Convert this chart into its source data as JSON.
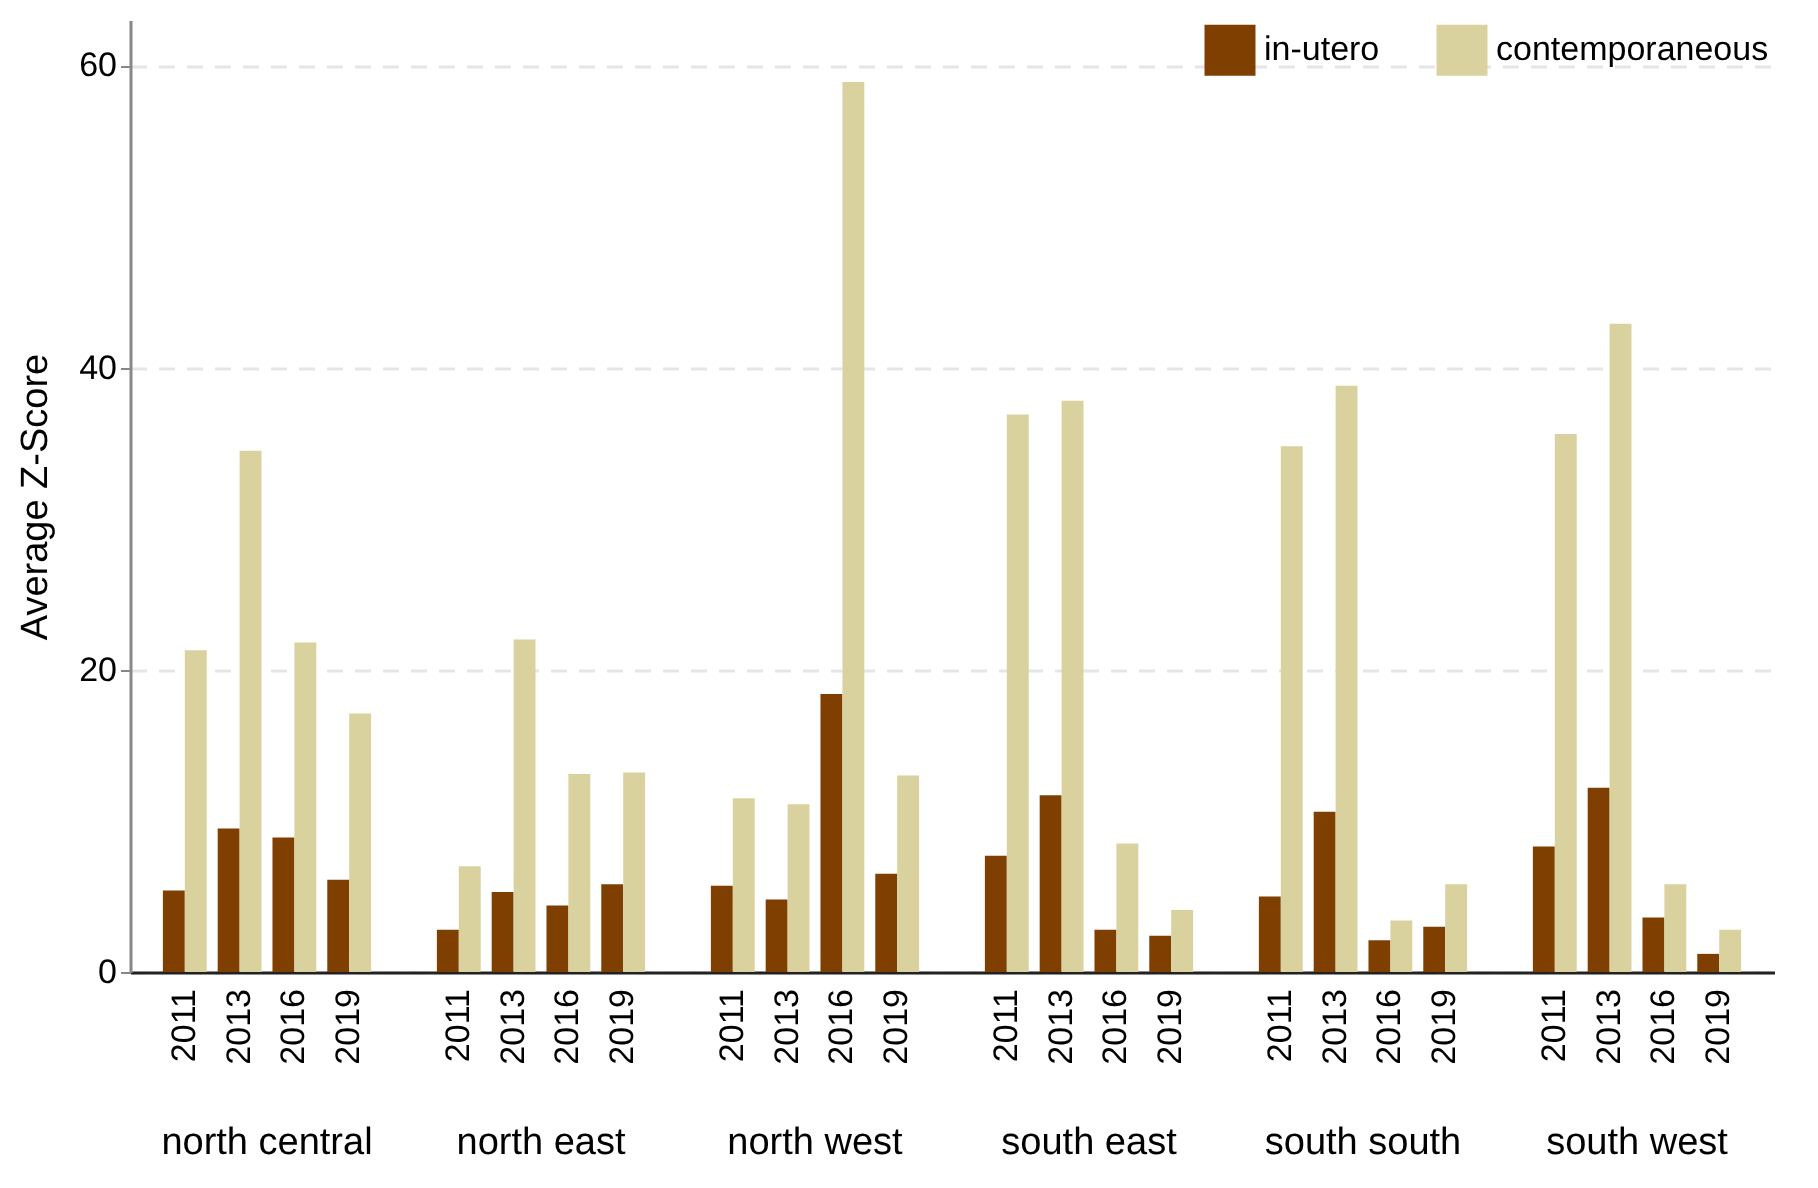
{
  "chart_data": {
    "type": "bar",
    "ylabel": "Average Z-Score",
    "categories": [
      "2011",
      "2013",
      "2016",
      "2019",
      "2011",
      "2013",
      "2016",
      "2019",
      "2011",
      "2013",
      "2016",
      "2019",
      "2011",
      "2013",
      "2016",
      "2019",
      "2011",
      "2013",
      "2016",
      "2019",
      "2011",
      "2013",
      "2016",
      "2019"
    ],
    "ylim": [
      0,
      63
    ],
    "yticks": [
      0,
      20,
      40,
      60
    ],
    "grid": "y",
    "legend": "top right",
    "annotations": [
      "north central",
      "north east",
      "north west",
      "south east",
      "south south",
      "south west"
    ],
    "series": [
      {
        "name": "in-utero",
        "color": "#7f3f00",
        "values": [
          5.4,
          9.5,
          8.9,
          6.1,
          2.8,
          5.3,
          4.4,
          5.8,
          5.7,
          4.8,
          18.4,
          6.5,
          7.7,
          11.7,
          2.8,
          2.4,
          5.0,
          10.6,
          2.1,
          3.0,
          8.3,
          12.2,
          3.6,
          1.2
        ]
      },
      {
        "name": "contemporaneous",
        "color": "#d9d29f",
        "values": [
          21.3,
          34.5,
          21.8,
          17.1,
          7.0,
          22.0,
          13.1,
          13.2,
          11.5,
          11.1,
          58.9,
          13.0,
          36.9,
          37.8,
          8.5,
          4.1,
          34.8,
          38.8,
          3.4,
          5.8,
          35.6,
          42.9,
          5.8,
          2.8
        ]
      }
    ]
  }
}
